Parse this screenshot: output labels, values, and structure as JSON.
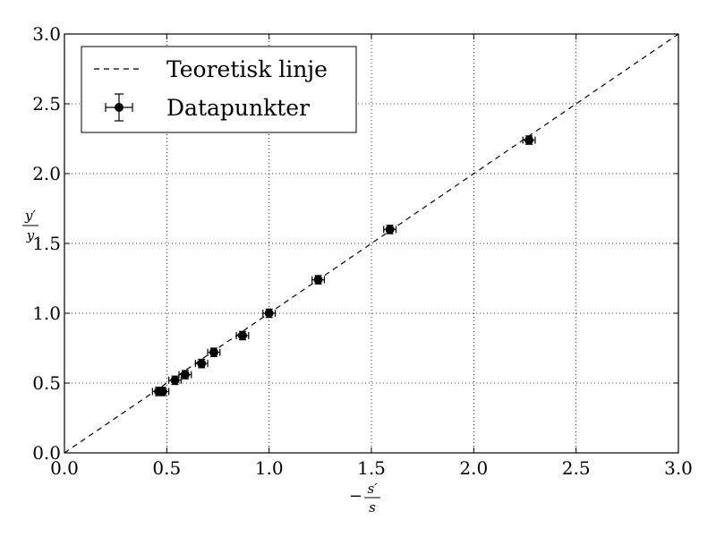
{
  "chart_data": {
    "type": "scatter",
    "xlabel": {
      "prefix": "−",
      "numerator": "s′",
      "denominator": "s"
    },
    "ylabel": {
      "numerator": "y′",
      "denominator": "y"
    },
    "xlim": [
      0.0,
      3.0
    ],
    "ylim": [
      0.0,
      3.0
    ],
    "xticks": [
      "0.0",
      "0.5",
      "1.0",
      "1.5",
      "2.0",
      "2.5",
      "3.0"
    ],
    "yticks": [
      "0.0",
      "0.5",
      "1.0",
      "1.5",
      "2.0",
      "2.5",
      "3.0"
    ],
    "grid": true,
    "legend_placement": "top-left",
    "series": [
      {
        "name": "Teoretisk linje",
        "kind": "line",
        "style": "dashed",
        "color": "#000000",
        "x": [
          0.0,
          3.0
        ],
        "y": [
          0.0,
          3.0
        ]
      },
      {
        "name": "Datapunkter",
        "kind": "errorbar",
        "color": "#000000",
        "points": [
          {
            "x": 0.46,
            "y": 0.44,
            "xerr": 0.03,
            "yerr": 0.03
          },
          {
            "x": 0.48,
            "y": 0.44,
            "xerr": 0.03,
            "yerr": 0.03
          },
          {
            "x": 0.54,
            "y": 0.52,
            "xerr": 0.03,
            "yerr": 0.03
          },
          {
            "x": 0.59,
            "y": 0.56,
            "xerr": 0.03,
            "yerr": 0.03
          },
          {
            "x": 0.67,
            "y": 0.64,
            "xerr": 0.03,
            "yerr": 0.03
          },
          {
            "x": 0.73,
            "y": 0.72,
            "xerr": 0.03,
            "yerr": 0.03
          },
          {
            "x": 0.87,
            "y": 0.84,
            "xerr": 0.03,
            "yerr": 0.03
          },
          {
            "x": 1.0,
            "y": 1.0,
            "xerr": 0.03,
            "yerr": 0.03
          },
          {
            "x": 1.24,
            "y": 1.24,
            "xerr": 0.03,
            "yerr": 0.03
          },
          {
            "x": 1.59,
            "y": 1.6,
            "xerr": 0.03,
            "yerr": 0.03
          },
          {
            "x": 2.27,
            "y": 2.24,
            "xerr": 0.03,
            "yerr": 0.03
          }
        ]
      }
    ]
  }
}
